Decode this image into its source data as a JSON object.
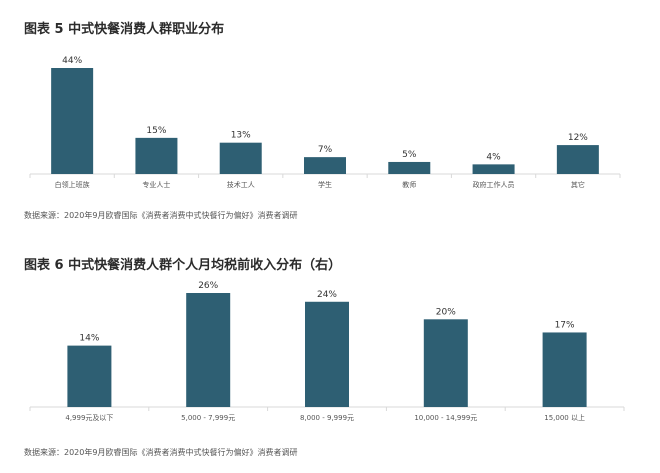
{
  "chart_data": [
    {
      "type": "bar",
      "title": "图表 5   中式快餐消费人群职业分布",
      "categories": [
        "白领上班族",
        "专业人士",
        "技术工人",
        "学生",
        "教师",
        "政府工作人员",
        "其它"
      ],
      "values": [
        44,
        15,
        13,
        7,
        5,
        4,
        12
      ],
      "value_labels": [
        "44%",
        "15%",
        "13%",
        "7%",
        "5%",
        "4%",
        "12%"
      ],
      "ylim": [
        0,
        44
      ],
      "grid": false,
      "bar_color": "#2e5f73",
      "source": "数据来源：2020年9月欧睿国际《消费者消费中式快餐行为偏好》消费者调研"
    },
    {
      "type": "bar",
      "title": "图表 6   中式快餐消费人群个人月均税前收入分布（右）",
      "categories": [
        "4,999元及以下",
        "5,000 - 7,999元",
        "8,000 - 9,999元",
        "10,000 - 14,999元",
        "15,000 以上"
      ],
      "values": [
        14,
        26,
        24,
        20,
        17
      ],
      "value_labels": [
        "14%",
        "26%",
        "24%",
        "20%",
        "17%"
      ],
      "ylim": [
        0,
        26
      ],
      "grid": false,
      "bar_color": "#2e5f73",
      "source": "数据来源：2020年9月欧睿国际《消费者消费中式快餐行为偏好》消费者调研"
    }
  ]
}
